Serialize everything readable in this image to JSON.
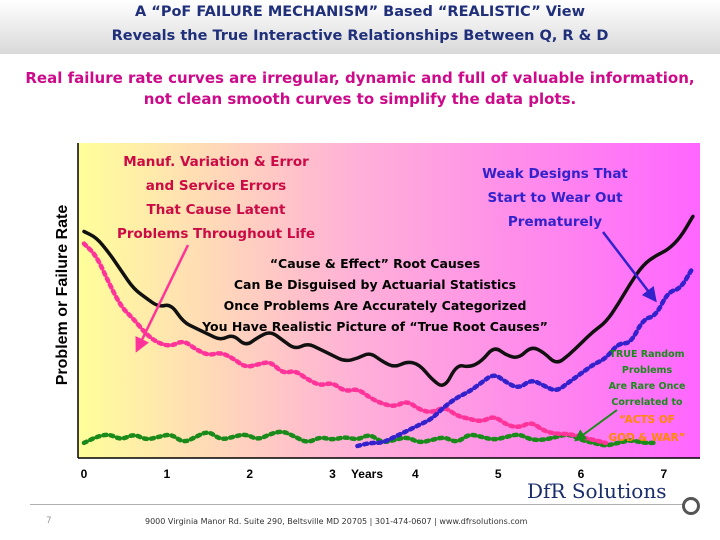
{
  "slide": {
    "title_line_1": "A “PoF FAILURE MECHANISM” Based “REALISTIC” View",
    "title_line_2": "Reveals the True Interactive Relationships Between Q, R & D",
    "subtitle_line_1": "Real failure rate curves are irregular, dynamic and full of valuable information,",
    "subtitle_line_2": "not clean smooth curves to simplify the data plots.",
    "page_number": "7",
    "footer": "9000 Virginia Manor Rd. Suite 290, Beltsville MD 20705 | 301-474-0607 | www.dfrsolutions.com",
    "logo": "DfR Solutions"
  },
  "colors": {
    "title": "#1f2f7a",
    "subtitle": "#cc0a8a",
    "band_left": "#ffff9a",
    "band_mid": "#ffb0d8",
    "band_right": "#ff66ff",
    "total_curve": "#111111",
    "latent_curve": "#ff3399",
    "wearout_curve": "#3322cc",
    "random_curve": "#1a8a1a",
    "annotation_red": "#cc0a45",
    "annotation_blue": "#3322cc",
    "annotation_green": "#1a8a1a",
    "annotation_orange": "#ff8800"
  },
  "chart_data": {
    "type": "line",
    "ylabel": "Problem or Failure Rate",
    "xlabel": "Years",
    "x_ticks": [
      "0",
      "1",
      "2",
      "3",
      "4",
      "5",
      "6",
      "7"
    ],
    "xlim": [
      0,
      7.4
    ],
    "ylim": [
      0,
      10
    ],
    "series": [
      {
        "key": "total",
        "style": "solid",
        "x": [
          0,
          0.15,
          0.3,
          0.45,
          0.6,
          0.75,
          0.9,
          1.05,
          1.2,
          1.35,
          1.5,
          1.65,
          1.8,
          1.95,
          2.1,
          2.25,
          2.4,
          2.55,
          2.7,
          2.85,
          3.0,
          3.15,
          3.3,
          3.45,
          3.6,
          3.75,
          3.9,
          4.05,
          4.2,
          4.35,
          4.5,
          4.65,
          4.8,
          4.95,
          5.1,
          5.25,
          5.4,
          5.55,
          5.7,
          5.85,
          6.0,
          6.15,
          6.3,
          6.45,
          6.6,
          6.75,
          6.9,
          7.05,
          7.2,
          7.35
        ],
        "values": [
          7.3,
          7.1,
          6.6,
          6.0,
          5.4,
          5.1,
          4.8,
          4.9,
          4.3,
          4.1,
          3.9,
          3.7,
          3.9,
          3.5,
          3.8,
          4.0,
          3.7,
          3.4,
          3.6,
          3.4,
          3.2,
          3.0,
          3.1,
          3.3,
          3.0,
          2.8,
          3.0,
          2.9,
          2.4,
          2.1,
          2.9,
          2.8,
          3.0,
          3.5,
          3.2,
          3.1,
          3.5,
          3.3,
          2.9,
          3.2,
          3.6,
          4.0,
          4.3,
          4.9,
          5.6,
          6.2,
          6.5,
          6.7,
          7.1,
          7.8
        ]
      },
      {
        "key": "latent",
        "style": "dotted",
        "x": [
          0,
          0.15,
          0.3,
          0.45,
          0.6,
          0.75,
          0.9,
          1.05,
          1.2,
          1.35,
          1.5,
          1.65,
          1.8,
          1.95,
          2.1,
          2.25,
          2.4,
          2.55,
          2.7,
          2.85,
          3.0,
          3.15,
          3.3,
          3.45,
          3.6,
          3.75,
          3.9,
          4.05,
          4.2,
          4.35,
          4.5,
          4.65,
          4.8,
          4.95,
          5.1,
          5.25,
          5.4,
          5.55,
          5.7,
          5.85,
          6.0,
          6.15,
          6.3
        ],
        "values": [
          6.9,
          6.5,
          5.6,
          4.8,
          4.4,
          3.9,
          3.6,
          3.5,
          3.7,
          3.4,
          3.2,
          3.3,
          3.1,
          2.8,
          2.9,
          3.0,
          2.6,
          2.7,
          2.4,
          2.2,
          2.3,
          2.0,
          2.1,
          1.8,
          1.6,
          1.5,
          1.7,
          1.4,
          1.3,
          1.5,
          1.2,
          1.1,
          1.0,
          1.2,
          0.9,
          0.8,
          1.0,
          0.7,
          0.6,
          0.6,
          0.5,
          0.4,
          0.3
        ]
      },
      {
        "key": "wearout",
        "style": "dotted",
        "x": [
          3.3,
          3.45,
          3.6,
          3.75,
          3.9,
          4.05,
          4.2,
          4.35,
          4.5,
          4.65,
          4.8,
          4.95,
          5.1,
          5.25,
          5.4,
          5.55,
          5.7,
          5.85,
          6.0,
          6.15,
          6.3,
          6.45,
          6.6,
          6.75,
          6.9,
          7.05,
          7.2,
          7.35
        ],
        "values": [
          0.2,
          0.3,
          0.3,
          0.5,
          0.7,
          0.9,
          1.1,
          1.5,
          1.8,
          2.0,
          2.3,
          2.6,
          2.3,
          2.1,
          2.4,
          2.2,
          2.0,
          2.3,
          2.6,
          2.9,
          3.1,
          3.6,
          3.6,
          4.4,
          4.5,
          5.3,
          5.4,
          6.1
        ]
      },
      {
        "key": "random",
        "style": "dotted",
        "x": [
          0,
          0.15,
          0.3,
          0.45,
          0.6,
          0.75,
          0.9,
          1.05,
          1.2,
          1.35,
          1.5,
          1.65,
          1.8,
          1.95,
          2.1,
          2.25,
          2.4,
          2.55,
          2.7,
          2.85,
          3.0,
          3.15,
          3.3,
          3.45,
          3.6,
          3.75,
          3.9,
          4.05,
          4.2,
          4.35,
          4.5,
          4.65,
          4.8,
          4.95,
          5.1,
          5.25,
          5.4,
          5.55,
          5.7,
          5.85,
          6.0,
          6.15,
          6.3,
          6.45,
          6.6,
          6.75,
          6.9
        ],
        "values": [
          0.3,
          0.5,
          0.6,
          0.4,
          0.6,
          0.4,
          0.5,
          0.6,
          0.3,
          0.5,
          0.7,
          0.4,
          0.5,
          0.6,
          0.4,
          0.6,
          0.7,
          0.5,
          0.3,
          0.5,
          0.4,
          0.5,
          0.4,
          0.6,
          0.3,
          0.4,
          0.5,
          0.3,
          0.4,
          0.5,
          0.3,
          0.6,
          0.5,
          0.4,
          0.5,
          0.6,
          0.4,
          0.4,
          0.5,
          0.6,
          0.4,
          0.3,
          0.2,
          0.3,
          0.4,
          0.3,
          0.3
        ]
      }
    ],
    "annotations": {
      "latent": [
        "Manuf. Variation & Error",
        "and Service Errors",
        "That Cause Latent",
        "Problems Throughout Life"
      ],
      "wearout": [
        "Weak Designs That",
        "Start to Wear Out",
        "Prematurely"
      ],
      "root_causes": [
        "“Cause & Effect” Root Causes",
        "Can Be Disguised by Actuarial Statistics",
        "Once Problems Are Accurately Categorized",
        "You Have Realistic Picture of “True Root Causes”"
      ],
      "random": [
        "TRUE Random",
        "Problems",
        "Are Rare Once",
        "Correlated to"
      ],
      "acts_of_god": [
        "“ACTS OF",
        "GOD & WAR”"
      ]
    },
    "grid": false,
    "legend": "none"
  }
}
